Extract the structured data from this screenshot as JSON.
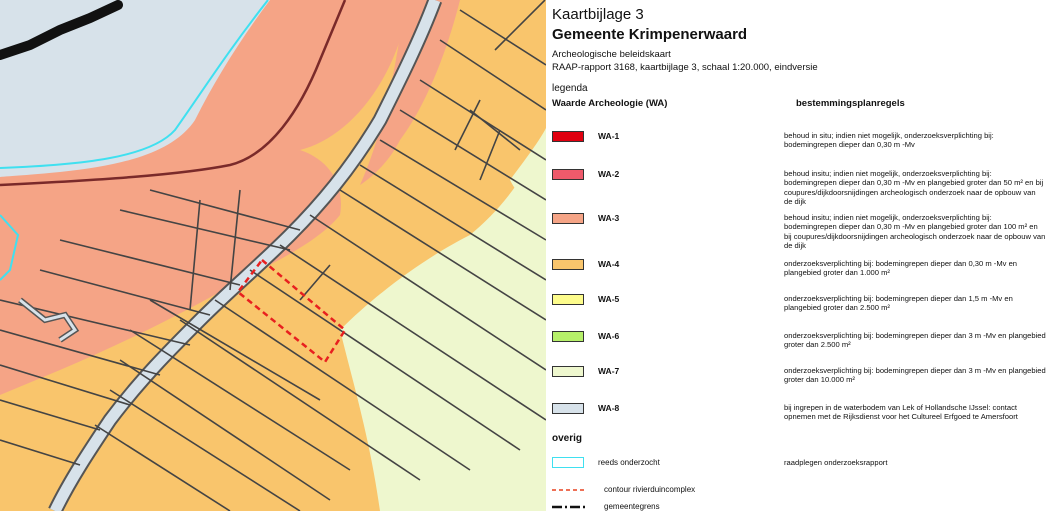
{
  "legend": {
    "title_1": "Kaartbijlage 3",
    "title_2": "Gemeente Krimpenerwaard",
    "subtitle_1": "Archeologische beleidskaart",
    "subtitle_2": "RAAP-rapport 3168, kaartbijlage 3, schaal 1:20.000, eindversie",
    "legend_label": "legenda",
    "col_left": "Waarde Archeologie (WA)",
    "col_right": "bestemmingsplanregels",
    "items": [
      {
        "code": "WA-1",
        "color": "#e0000f",
        "text": "behoud in situ; indien niet mogelijk, onderzoeksverplichting bij: bodemingrepen dieper dan 0,30 m -Mv"
      },
      {
        "code": "WA-2",
        "color": "#ef5a6b",
        "text": "behoud insitu; indien niet mogelijk, onderzoeksverplichting bij: bodemingrepen dieper dan 0,30 m -Mv en plangebied groter dan 50 m² en bij coupures/dijkdoorsnijdingen archeologisch onderzoek naar de opbouw van de dijk"
      },
      {
        "code": "WA-3",
        "color": "#f5a486",
        "text": "behoud insitu; indien niet mogelijk, onderzoeksverplichting bij: bodemingrepen dieper dan 0,30 m -Mv en plangebied groter dan 100 m² en bij coupures/dijkdoorsnijdingen archeologisch onderzoek naar de opbouw van de dijk"
      },
      {
        "code": "WA-4",
        "color": "#f9c56c",
        "text": "onderzoeksverplichting bij: bodemingrepen dieper dan 0,30 m -Mv en plangebied groter dan 1.000 m²"
      },
      {
        "code": "WA-5",
        "color": "#fdfc8c",
        "text": "onderzoeksverplichting bij: bodemingrepen dieper dan 1,5 m -Mv en plangebied groter dan 2.500 m²"
      },
      {
        "code": "WA-6",
        "color": "#b6f06a",
        "text": "onderzoeksverplichting bij: bodemingrepen dieper dan 3 m -Mv en plangebied groter dan 2.500 m²"
      },
      {
        "code": "WA-7",
        "color": "#eef7ce",
        "text": "onderzoeksverplichting bij: bodemingrepen dieper dan 3 m -Mv en plangebied groter dan 10.000 m²"
      },
      {
        "code": "WA-8",
        "color": "#d7e2ea",
        "text": "bij ingrepen in de waterbodem van Lek of Hollandsche IJssel: contact opnemen met de Rijksdienst voor het Cultureel Erfgoed te Amersfoort"
      }
    ],
    "overig_label": "overig",
    "overig_items": [
      {
        "label": "reeds onderzocht",
        "text": "raadplegen onderzoeksrapport",
        "color": "#3fe0f0"
      },
      {
        "label": "contour rivierduincomplex",
        "color": "#e8401f"
      },
      {
        "label": "gemeentegrens",
        "color": "#111111"
      }
    ]
  }
}
